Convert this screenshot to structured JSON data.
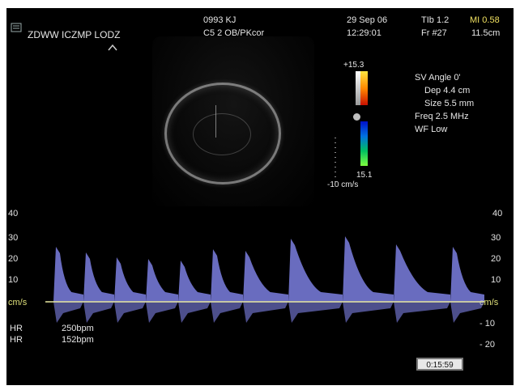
{
  "header": {
    "institution": "ZDWW ICZMP LODZ",
    "patient_id": "0993 KJ",
    "probe_preset": "C5 2 OB/PKcor",
    "date": "29 Sep 06",
    "time": "12:29:01",
    "tib": "TIb 1.2",
    "mi": "MI 0.58",
    "frame": "Fr #27",
    "depth": "11.5cm"
  },
  "colorbar": {
    "top_label": "+15.3",
    "bottom_label": "15.1",
    "unit_label": "-10 cm/s"
  },
  "doppler_params": {
    "sv_angle": "SV Angle 0'",
    "dep": "Dep 4.4  cm",
    "size": "Size 5.5  mm",
    "freq": "Freq 2.5  MHz",
    "wf": "WF Low"
  },
  "spectrum": {
    "left_ticks": [
      "40",
      "30",
      "20",
      "10",
      "cm/s"
    ],
    "right_ticks": [
      "40",
      "30",
      "20",
      "10",
      "cm/s",
      "- 10",
      "- 20"
    ],
    "hr_label": "HR",
    "hr_value_1": "250bpm",
    "hr_value_2": "152bpm",
    "timer": "0:15:59"
  },
  "colors": {
    "spectrum": "#8c90ff",
    "baseline": "#e8e8a0",
    "background": "#000000"
  },
  "icons": [
    "logo-icon",
    "probe-orientation-icon"
  ]
}
